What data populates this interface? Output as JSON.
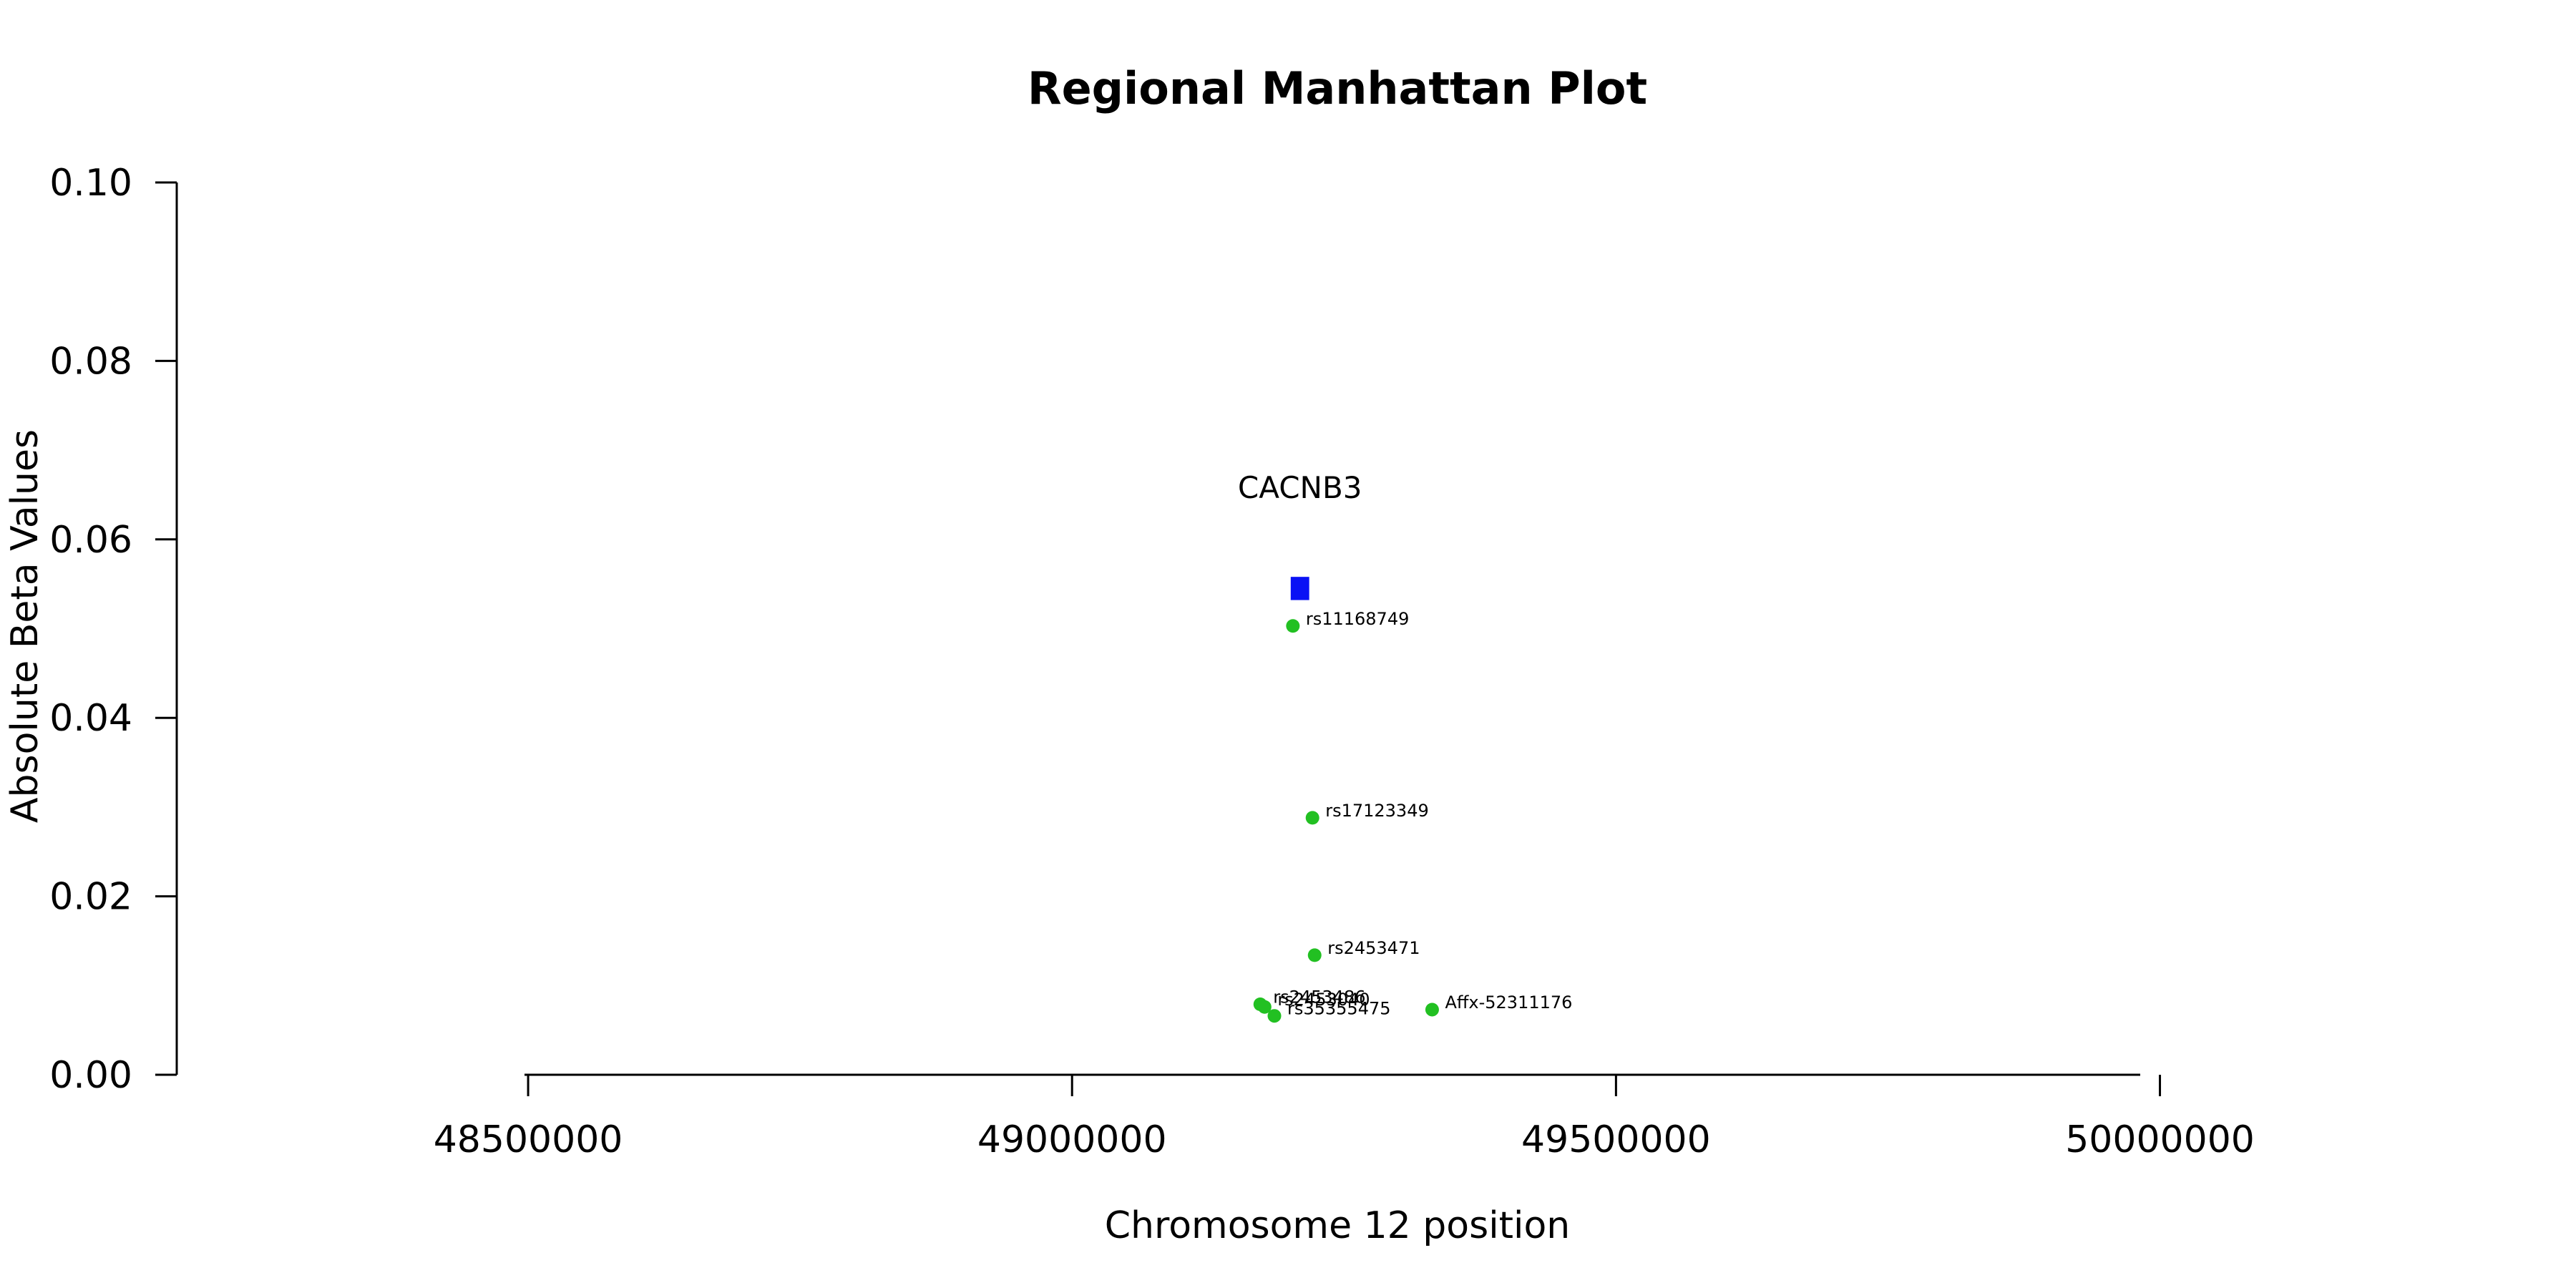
{
  "chart_data": {
    "type": "scatter",
    "title": "Regional Manhattan Plot",
    "xlabel": "Chromosome 12 position",
    "ylabel": "Absolute Beta Values",
    "xlim": [
      48177000,
      50220000
    ],
    "ylim": [
      0,
      0.1
    ],
    "xticks": [
      48500000,
      49000000,
      49500000,
      50000000
    ],
    "xtick_labels": [
      "48500000",
      "49000000",
      "49500000",
      "50000000"
    ],
    "yticks": [
      0,
      0.02,
      0.04,
      0.06,
      0.08,
      0.1
    ],
    "ytick_labels": [
      "0.00",
      "0.02",
      "0.04",
      "0.06",
      "0.08",
      "0.10"
    ],
    "point_color": "#22c022",
    "gene_color": "#0a12f5",
    "points": [
      {
        "label": "rs11168749",
        "x": 49203000,
        "y": 0.0503
      },
      {
        "label": "rs17123349",
        "x": 49221000,
        "y": 0.0288
      },
      {
        "label": "rs2453471",
        "x": 49223000,
        "y": 0.0134
      },
      {
        "label": "rs2453486",
        "x": 49173000,
        "y": 0.0079
      },
      {
        "label": "rs2453040",
        "x": 49177000,
        "y": 0.0076
      },
      {
        "label": "rs35355475",
        "x": 49186000,
        "y": 0.0066
      },
      {
        "label": "Affx-52311176",
        "x": 49331000,
        "y": 0.0073
      }
    ],
    "genes": [
      {
        "name": "CACNB3",
        "start": 49201000,
        "end": 49218000,
        "y_low": 0.0532,
        "y_high": 0.0558
      }
    ],
    "grid": false,
    "legend": "none"
  }
}
